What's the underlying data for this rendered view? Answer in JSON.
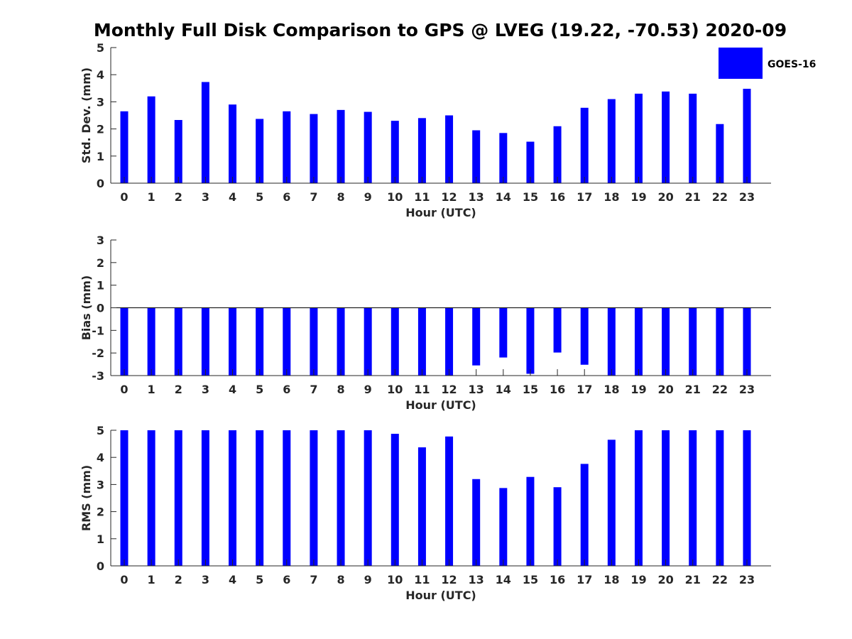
{
  "title": "Monthly Full Disk Comparison to GPS @ LVEG (19.22, -70.53) 2020-09",
  "legend": {
    "series_name": "GOES-16",
    "color": "#0000ff",
    "position": "top-right"
  },
  "chart_data": [
    {
      "type": "bar",
      "name": "std-dev",
      "xlabel": "Hour (UTC)",
      "ylabel": "Std. Dev. (mm)",
      "ylim": [
        0,
        5
      ],
      "yticks": [
        0,
        1,
        2,
        3,
        4,
        5
      ],
      "categories": [
        "0",
        "1",
        "2",
        "3",
        "4",
        "5",
        "6",
        "7",
        "8",
        "9",
        "10",
        "11",
        "12",
        "13",
        "14",
        "15",
        "16",
        "17",
        "18",
        "19",
        "20",
        "21",
        "22",
        "23"
      ],
      "series": [
        {
          "name": "GOES-16",
          "color": "#0000ff",
          "values": [
            2.65,
            3.2,
            2.33,
            3.73,
            2.9,
            2.37,
            2.65,
            2.55,
            2.7,
            2.63,
            2.3,
            2.4,
            2.5,
            1.95,
            1.85,
            1.53,
            2.1,
            2.78,
            3.1,
            3.3,
            3.38,
            3.3,
            2.18,
            3.48
          ]
        }
      ]
    },
    {
      "type": "bar",
      "name": "bias",
      "xlabel": "Hour (UTC)",
      "ylabel": "Bias (mm)",
      "ylim": [
        -3,
        3
      ],
      "yticks": [
        -3,
        -2,
        -1,
        0,
        1,
        2,
        3
      ],
      "categories": [
        "0",
        "1",
        "2",
        "3",
        "4",
        "5",
        "6",
        "7",
        "8",
        "9",
        "10",
        "11",
        "12",
        "13",
        "14",
        "15",
        "16",
        "17",
        "18",
        "19",
        "20",
        "21",
        "22",
        "23"
      ],
      "series": [
        {
          "name": "GOES-16",
          "color": "#0000ff",
          "values": [
            -3,
            -3,
            -3,
            -3,
            -3,
            -3,
            -3,
            -3,
            -3,
            -3,
            -3,
            -3,
            -3,
            -2.55,
            -2.2,
            -2.92,
            -1.98,
            -2.52,
            -3,
            -3,
            -3,
            -3,
            -3,
            -3
          ]
        }
      ]
    },
    {
      "type": "bar",
      "name": "rms",
      "xlabel": "Hour (UTC)",
      "ylabel": "RMS (mm)",
      "ylim": [
        0,
        5
      ],
      "yticks": [
        0,
        1,
        2,
        3,
        4,
        5
      ],
      "categories": [
        "0",
        "1",
        "2",
        "3",
        "4",
        "5",
        "6",
        "7",
        "8",
        "9",
        "10",
        "11",
        "12",
        "13",
        "14",
        "15",
        "16",
        "17",
        "18",
        "19",
        "20",
        "21",
        "22",
        "23"
      ],
      "series": [
        {
          "name": "GOES-16",
          "color": "#0000ff",
          "values": [
            5,
            5,
            5,
            5,
            5,
            5,
            5,
            5,
            5,
            5,
            4.87,
            4.37,
            4.77,
            3.2,
            2.87,
            3.28,
            2.9,
            3.76,
            4.65,
            5,
            5,
            5,
            5,
            5
          ]
        }
      ]
    }
  ]
}
